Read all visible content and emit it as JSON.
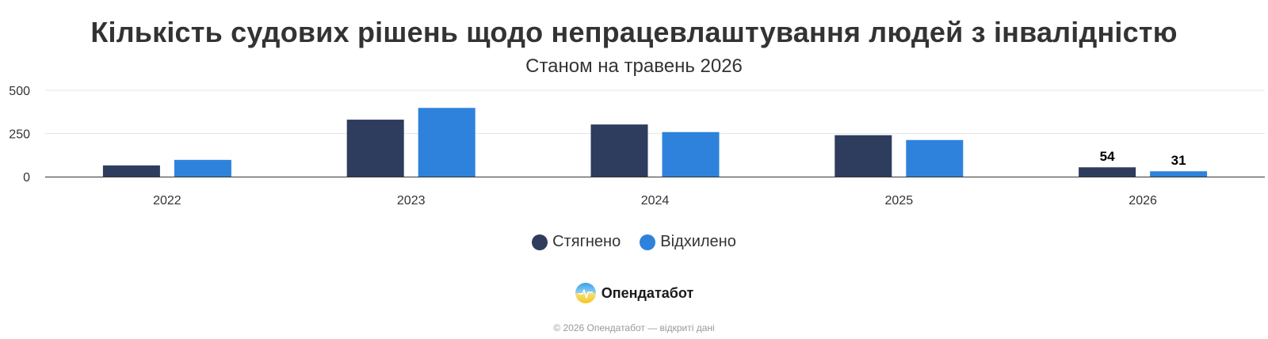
{
  "colors": {
    "series_1": "#2e3d5e",
    "series_2": "#2e82dc",
    "grid": "#e6e6e6",
    "axis": "#333333"
  },
  "chart_data": {
    "type": "bar",
    "title": "Кількість судових рішень щодо непрацевлаштування людей з інвалідністю",
    "subtitle": "Станом на травень 2026",
    "categories": [
      "2022",
      "2023",
      "2024",
      "2025",
      "2026"
    ],
    "series": [
      {
        "name": "Стягнено",
        "values": [
          65,
          330,
          302,
          240,
          54
        ]
      },
      {
        "name": "Відхилено",
        "values": [
          97,
          398,
          258,
          212,
          31
        ]
      }
    ],
    "data_labels": {
      "shown_for_category": "2026"
    },
    "yticks": [
      "0",
      "250",
      "500"
    ],
    "ylim": [
      0,
      500
    ],
    "grid": true,
    "legend": "bottom-center"
  },
  "brand": {
    "name": "Опендатабот",
    "logo_icon": "opendatabot-logo-icon"
  },
  "footer": {
    "text": "© 2026 Опендатабот — відкриті дані"
  }
}
